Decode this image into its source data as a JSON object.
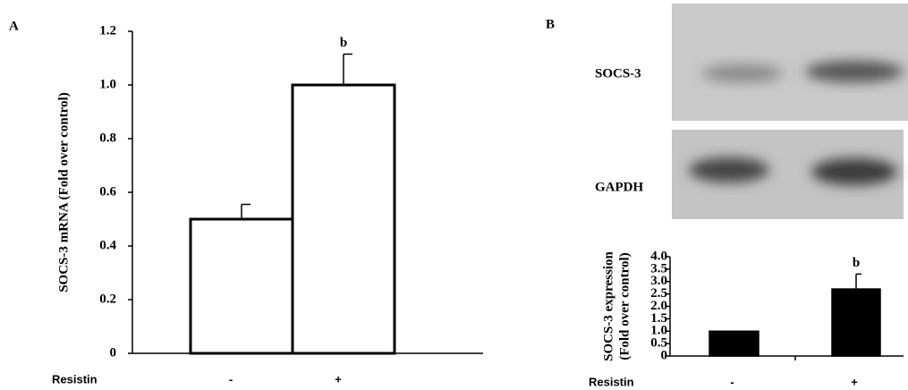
{
  "panel_labels": [
    "A",
    "B"
  ],
  "blot": {
    "labels": [
      "SOCS-3",
      "GAPDH"
    ]
  },
  "chart_data": [
    {
      "type": "bar",
      "xlabel": "Resistin",
      "ylabel": [
        "SOCS-3 mRNA (Fold over control)"
      ],
      "categories": [
        "-",
        "+"
      ],
      "values": [
        0.5,
        1.0
      ],
      "errors": [
        0.055,
        0.115
      ],
      "bar_labels": [
        null,
        "b"
      ],
      "color": "#ffffff",
      "ylim": [
        0,
        1.2
      ],
      "yticks": [
        0,
        0.2,
        0.4,
        0.6,
        0.8,
        {
          "value": 1,
          "label": "1.0"
        },
        1.2
      ]
    },
    {
      "type": "bar",
      "xlabel": "Resistin",
      "ylabel": [
        "SOCS-3 expression",
        "(Fold over control)"
      ],
      "categories": [
        "-",
        "+"
      ],
      "values": [
        1.0,
        2.7
      ],
      "errors": [
        null,
        0.6
      ],
      "bar_labels": [
        null,
        "b"
      ],
      "color": "#000000",
      "ylim": [
        0,
        4
      ],
      "yticks": [
        0,
        0.5,
        {
          "value": 1,
          "label": "1.0"
        },
        1.5,
        {
          "value": 2,
          "label": "2.0"
        },
        2.5,
        {
          "value": 3,
          "label": "3.0"
        },
        3.5,
        {
          "value": 4,
          "label": "4.0"
        }
      ]
    }
  ]
}
